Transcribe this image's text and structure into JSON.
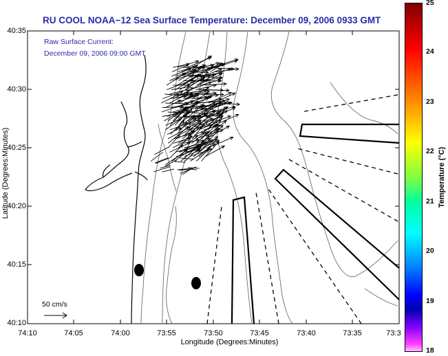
{
  "title": "RU COOL  NOAA−12  Sea Surface Temperature:  December 09, 2006 0933 GMT",
  "current": {
    "line1": "Raw Surface Current:",
    "line2": "December 09, 2006 09:00 GMT"
  },
  "scale_label": "50 cm/s",
  "axes": {
    "xlabel": "Longitude (Degrees:Minutes)",
    "ylabel": "Latitude (Degrees:Minutes)",
    "xticks": [
      "74:10",
      "74:05",
      "74:00",
      "73:55",
      "73:50",
      "73:45",
      "73:40",
      "73:35",
      "73:3"
    ],
    "yticks": [
      "40:35",
      "40:30",
      "40:25",
      "40:20",
      "40:15",
      "40:10"
    ]
  },
  "colorbar": {
    "label": "Temperature (°C)",
    "ticks": [
      "25",
      "24",
      "23",
      "22",
      "21",
      "20",
      "19",
      "18"
    ],
    "min": 18,
    "max": 25,
    "colors": [
      "#800000",
      "#ff0000",
      "#ff8000",
      "#ffff00",
      "#00ffff",
      "#0000ff",
      "#8000ff",
      "#ffc0ff"
    ]
  },
  "colors": {
    "title": "#2a2aa8",
    "coastline": "#000000",
    "bathymetry": "#6e6e6e"
  }
}
